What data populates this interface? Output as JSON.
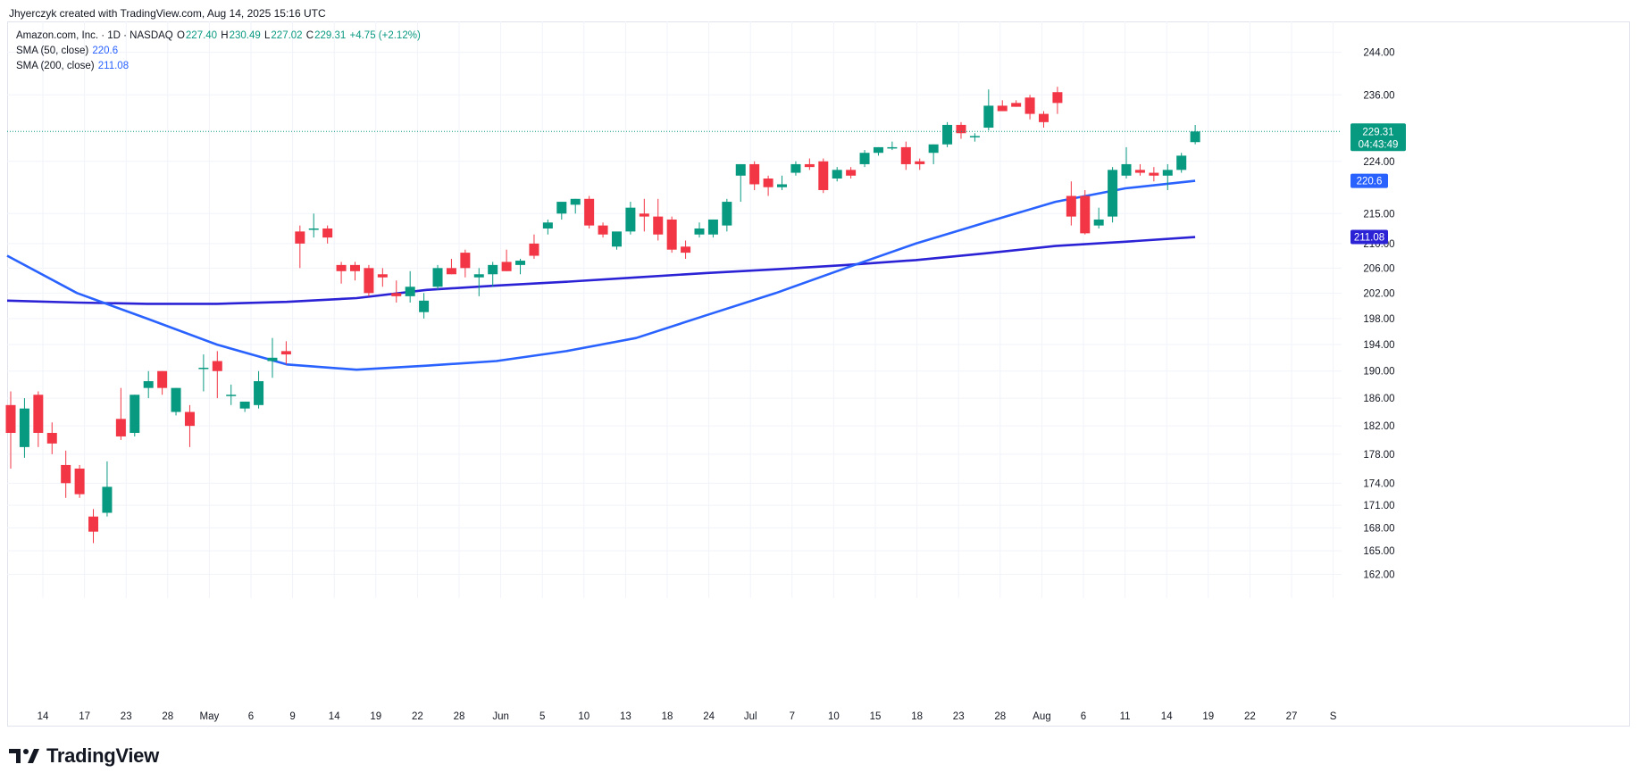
{
  "credit": "Jhyerczyk created with TradingView.com, Aug 14, 2025 15:16 UTC",
  "brand": "TradingView",
  "legend": {
    "symbol": "Amazon.com, Inc. · 1D · NASDAQ",
    "o_label": "O",
    "o": "227.40",
    "h_label": "H",
    "h": "230.49",
    "l_label": "L",
    "l": "227.02",
    "c_label": "C",
    "c": "229.31",
    "change": "+4.75 (+2.12%)",
    "sma50_label": "SMA (50, close)",
    "sma50_value": "220.6",
    "sma200_label": "SMA (200, close)",
    "sma200_value": "211.08"
  },
  "price_tag": {
    "price": "229.31",
    "countdown": "04:43:49"
  },
  "colors": {
    "up": "#089981",
    "down": "#f23645",
    "sma50": "#2962ff",
    "sma200": "#2b22d6",
    "axis_text": "#131722",
    "grid": "#f0f3fa"
  },
  "chart_data": {
    "type": "candlestick",
    "y_axis": {
      "scale": "log",
      "ylim": [
        159,
        250
      ],
      "ticks": [
        162,
        165,
        168,
        171,
        174,
        178,
        182,
        186,
        190,
        194,
        198,
        202,
        206,
        210,
        215,
        224,
        236,
        244
      ]
    },
    "x_tick_labels": [
      "14",
      "17",
      "23",
      "28",
      "May",
      "6",
      "9",
      "14",
      "19",
      "22",
      "28",
      "Jun",
      "5",
      "10",
      "13",
      "18",
      "24",
      "Jul",
      "7",
      "10",
      "15",
      "18",
      "23",
      "28",
      "Aug",
      "6",
      "11",
      "14",
      "19",
      "22",
      "27",
      "S"
    ],
    "candles": [
      {
        "date": "Apr 10",
        "o": 185,
        "h": 187,
        "l": 176,
        "c": 181
      },
      {
        "date": "Apr 11",
        "o": 179,
        "h": 186,
        "l": 177.5,
        "c": 184.5
      },
      {
        "date": "Apr 14",
        "o": 186.5,
        "h": 187,
        "l": 179,
        "c": 181
      },
      {
        "date": "Apr 15",
        "o": 181,
        "h": 182.5,
        "l": 178,
        "c": 179.5
      },
      {
        "date": "Apr 16",
        "o": 176.5,
        "h": 178.5,
        "l": 172,
        "c": 174
      },
      {
        "date": "Apr 17",
        "o": 176,
        "h": 176.5,
        "l": 172,
        "c": 172.5
      },
      {
        "date": "Apr 21",
        "o": 169.5,
        "h": 170.5,
        "l": 166,
        "c": 167.5
      },
      {
        "date": "Apr 22",
        "o": 170,
        "h": 177,
        "l": 169.5,
        "c": 173.5
      },
      {
        "date": "Apr 23",
        "o": 183,
        "h": 187.5,
        "l": 180,
        "c": 180.5
      },
      {
        "date": "Apr 24",
        "o": 181,
        "h": 186.5,
        "l": 180.5,
        "c": 186.5
      },
      {
        "date": "Apr 25",
        "o": 187.5,
        "h": 190,
        "l": 186,
        "c": 188.5
      },
      {
        "date": "Apr 28",
        "o": 190,
        "h": 190,
        "l": 186.5,
        "c": 187.5
      },
      {
        "date": "Apr 29",
        "o": 184,
        "h": 187.5,
        "l": 183.5,
        "c": 187.5
      },
      {
        "date": "Apr 30",
        "o": 184,
        "h": 185,
        "l": 179,
        "c": 182
      },
      {
        "date": "May 1",
        "o": 190.5,
        "h": 192.5,
        "l": 187,
        "c": 190.5
      },
      {
        "date": "May 2",
        "o": 191.5,
        "h": 193,
        "l": 186,
        "c": 190
      },
      {
        "date": "May 5",
        "o": 186.5,
        "h": 188,
        "l": 185,
        "c": 186.5
      },
      {
        "date": "May 6",
        "o": 184.5,
        "h": 185.5,
        "l": 184,
        "c": 185.5
      },
      {
        "date": "May 7",
        "o": 185,
        "h": 190,
        "l": 184.5,
        "c": 188.5
      },
      {
        "date": "May 8",
        "o": 191.5,
        "h": 195,
        "l": 189,
        "c": 192
      },
      {
        "date": "May 9",
        "o": 193,
        "h": 194.5,
        "l": 191,
        "c": 192.5
      },
      {
        "date": "May 12",
        "o": 212,
        "h": 213,
        "l": 206,
        "c": 210
      },
      {
        "date": "May 13",
        "o": 212.5,
        "h": 215,
        "l": 211,
        "c": 212.5
      },
      {
        "date": "May 14",
        "o": 212.5,
        "h": 213,
        "l": 210,
        "c": 211
      },
      {
        "date": "May 15",
        "o": 206.5,
        "h": 207,
        "l": 203.5,
        "c": 205.5
      },
      {
        "date": "May 16",
        "o": 206.5,
        "h": 207,
        "l": 204,
        "c": 205.5
      },
      {
        "date": "May 19",
        "o": 206,
        "h": 206.5,
        "l": 201.5,
        "c": 202
      },
      {
        "date": "May 20",
        "o": 205,
        "h": 206,
        "l": 203,
        "c": 204.5
      },
      {
        "date": "May 21",
        "o": 202,
        "h": 204,
        "l": 200.5,
        "c": 201.5
      },
      {
        "date": "May 22",
        "o": 201.5,
        "h": 205.5,
        "l": 200.5,
        "c": 203
      },
      {
        "date": "May 23",
        "o": 199,
        "h": 202,
        "l": 198,
        "c": 200.8
      },
      {
        "date": "May 27",
        "o": 203,
        "h": 206.5,
        "l": 202.5,
        "c": 206
      },
      {
        "date": "May 28",
        "o": 206,
        "h": 207.5,
        "l": 205,
        "c": 205
      },
      {
        "date": "May 29",
        "o": 208.5,
        "h": 209,
        "l": 204.5,
        "c": 206
      },
      {
        "date": "May 30",
        "o": 204.5,
        "h": 206,
        "l": 201.5,
        "c": 205
      },
      {
        "date": "Jun 2",
        "o": 205,
        "h": 207,
        "l": 203,
        "c": 206.5
      },
      {
        "date": "Jun 3",
        "o": 207,
        "h": 209,
        "l": 205.5,
        "c": 205.5
      },
      {
        "date": "Jun 4",
        "o": 206.5,
        "h": 207.5,
        "l": 205,
        "c": 207.2
      },
      {
        "date": "Jun 5",
        "o": 210,
        "h": 211.5,
        "l": 207.5,
        "c": 208
      },
      {
        "date": "Jun 6",
        "o": 212.5,
        "h": 214,
        "l": 211.5,
        "c": 213.5
      },
      {
        "date": "Jun 9",
        "o": 215,
        "h": 217,
        "l": 214,
        "c": 217
      },
      {
        "date": "Jun 10",
        "o": 216.5,
        "h": 217.5,
        "l": 215,
        "c": 217.5
      },
      {
        "date": "Jun 11",
        "o": 217.5,
        "h": 218,
        "l": 212.5,
        "c": 213
      },
      {
        "date": "Jun 12",
        "o": 213,
        "h": 213.5,
        "l": 211,
        "c": 211.5
      },
      {
        "date": "Jun 13",
        "o": 209.5,
        "h": 211.5,
        "l": 209,
        "c": 212
      },
      {
        "date": "Jun 16",
        "o": 212,
        "h": 217,
        "l": 211.5,
        "c": 216
      },
      {
        "date": "Jun 17",
        "o": 215,
        "h": 217.5,
        "l": 212,
        "c": 214.5
      },
      {
        "date": "Jun 18",
        "o": 214.5,
        "h": 217.5,
        "l": 210.5,
        "c": 211.5
      },
      {
        "date": "Jun 20",
        "o": 214,
        "h": 214.5,
        "l": 208.5,
        "c": 209
      },
      {
        "date": "Jun 23",
        "o": 209.5,
        "h": 210.5,
        "l": 207.5,
        "c": 208.5
      },
      {
        "date": "Jun 24",
        "o": 211.5,
        "h": 213.5,
        "l": 211,
        "c": 212.5
      },
      {
        "date": "Jun 25",
        "o": 211.5,
        "h": 214,
        "l": 211,
        "c": 214
      },
      {
        "date": "Jun 26",
        "o": 213,
        "h": 217.5,
        "l": 212,
        "c": 217
      },
      {
        "date": "Jun 27",
        "o": 221.5,
        "h": 223.5,
        "l": 217,
        "c": 223.5
      },
      {
        "date": "Jun 30",
        "o": 223.5,
        "h": 224,
        "l": 219,
        "c": 220
      },
      {
        "date": "Jul 1",
        "o": 221,
        "h": 221.5,
        "l": 218,
        "c": 219.5
      },
      {
        "date": "Jul 2",
        "o": 219.5,
        "h": 221.5,
        "l": 219,
        "c": 220
      },
      {
        "date": "Jul 3",
        "o": 222,
        "h": 224,
        "l": 221.5,
        "c": 223.5
      },
      {
        "date": "Jul 7",
        "o": 223.5,
        "h": 224.5,
        "l": 222.5,
        "c": 223
      },
      {
        "date": "Jul 8",
        "o": 224,
        "h": 224.5,
        "l": 218.5,
        "c": 219
      },
      {
        "date": "Jul 9",
        "o": 221,
        "h": 223,
        "l": 220.5,
        "c": 222.5
      },
      {
        "date": "Jul 10",
        "o": 222.5,
        "h": 223,
        "l": 221,
        "c": 221.5
      },
      {
        "date": "Jul 11",
        "o": 223.5,
        "h": 226,
        "l": 223,
        "c": 225.5
      },
      {
        "date": "Jul 14",
        "o": 225.5,
        "h": 226.5,
        "l": 225,
        "c": 226.5
      },
      {
        "date": "Jul 15",
        "o": 226.5,
        "h": 227.5,
        "l": 226,
        "c": 226.5
      },
      {
        "date": "Jul 16",
        "o": 226.5,
        "h": 227.5,
        "l": 222.5,
        "c": 223.5
      },
      {
        "date": "Jul 17",
        "o": 224,
        "h": 224.5,
        "l": 222.5,
        "c": 223.5
      },
      {
        "date": "Jul 18",
        "o": 225.5,
        "h": 227,
        "l": 223.5,
        "c": 227
      },
      {
        "date": "Jul 21",
        "o": 227,
        "h": 231,
        "l": 226.5,
        "c": 230.5
      },
      {
        "date": "Jul 22",
        "o": 230.5,
        "h": 231,
        "l": 228,
        "c": 229
      },
      {
        "date": "Jul 23",
        "o": 228.5,
        "h": 229,
        "l": 227.5,
        "c": 228.5
      },
      {
        "date": "Jul 24",
        "o": 230,
        "h": 237,
        "l": 229.5,
        "c": 234
      },
      {
        "date": "Jul 25",
        "o": 234,
        "h": 235,
        "l": 233,
        "c": 233
      },
      {
        "date": "Jul 28",
        "o": 234.5,
        "h": 235,
        "l": 233.8,
        "c": 233.8
      },
      {
        "date": "Jul 29",
        "o": 235.5,
        "h": 236,
        "l": 231.5,
        "c": 232.5
      },
      {
        "date": "Jul 30",
        "o": 232.5,
        "h": 233,
        "l": 230,
        "c": 231
      },
      {
        "date": "Jul 31",
        "o": 236.5,
        "h": 237.5,
        "l": 232.5,
        "c": 234.5
      },
      {
        "date": "Aug 1",
        "o": 218,
        "h": 220.5,
        "l": 213,
        "c": 214.5
      },
      {
        "date": "Aug 4",
        "o": 218,
        "h": 219,
        "l": 211.5,
        "c": 211.7
      },
      {
        "date": "Aug 5",
        "o": 213,
        "h": 216,
        "l": 212.5,
        "c": 214
      },
      {
        "date": "Aug 6",
        "o": 214.5,
        "h": 223,
        "l": 213.5,
        "c": 222.5
      },
      {
        "date": "Aug 7",
        "o": 221.5,
        "h": 226.5,
        "l": 221,
        "c": 223.5
      },
      {
        "date": "Aug 8",
        "o": 222.5,
        "h": 223.5,
        "l": 221.5,
        "c": 222
      },
      {
        "date": "Aug 11",
        "o": 222,
        "h": 223,
        "l": 220.5,
        "c": 221.5
      },
      {
        "date": "Aug 12",
        "o": 221.5,
        "h": 223.5,
        "l": 219,
        "c": 222.5
      },
      {
        "date": "Aug 13",
        "o": 222.5,
        "h": 225.5,
        "l": 222,
        "c": 225
      },
      {
        "date": "Aug 14",
        "o": 227.4,
        "h": 230.49,
        "l": 227.02,
        "c": 229.31
      }
    ],
    "series": [
      {
        "name": "SMA (50, close)",
        "values": [
          208,
          202,
          198,
          194,
          191,
          190.2,
          190.8,
          191.5,
          193,
          195,
          198.5,
          202,
          206,
          210,
          213.5,
          217,
          219.3,
          220.6
        ]
      },
      {
        "name": "SMA (200, close)",
        "values": [
          200.8,
          200.5,
          200.3,
          200.3,
          200.6,
          201.2,
          202.5,
          203.2,
          203.8,
          204.5,
          205.2,
          205.8,
          206.5,
          207.3,
          208.4,
          209.6,
          210.3,
          211.08
        ]
      }
    ]
  }
}
